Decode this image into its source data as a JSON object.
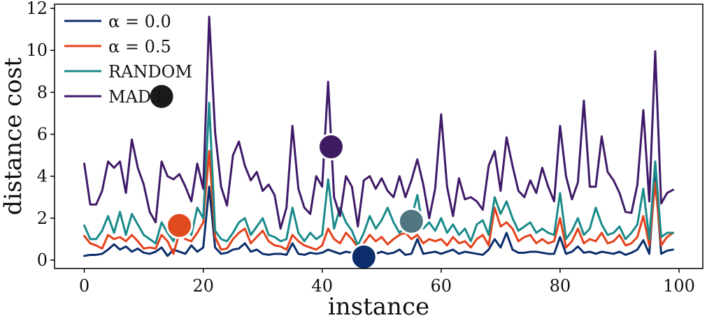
{
  "chart_data": {
    "type": "line",
    "title": "",
    "xlabel": "instance",
    "ylabel": "distance cost",
    "xlim": [
      -5,
      104
    ],
    "ylim": [
      -0.4,
      12.2
    ],
    "xticks": [
      0,
      20,
      40,
      60,
      80,
      100
    ],
    "yticks": [
      0,
      2,
      4,
      6,
      8,
      10,
      12
    ],
    "legend": {
      "placement": "top-left",
      "entries": [
        {
          "name": "α = 0.0",
          "color": "#0b2d6b"
        },
        {
          "name": "α = 0.5",
          "color": "#e5411b"
        },
        {
          "name": "RANDOM",
          "color": "#1a8a8a"
        },
        {
          "name": "MAD3",
          "color": "#3f1a68"
        }
      ]
    },
    "markers": [
      {
        "series": "α = 0.0",
        "color": "#0b2d6b",
        "x": 47,
        "y": 0.15
      },
      {
        "series": "α = 0.5",
        "color": "#e04a1e",
        "x": 16,
        "y": 1.65
      },
      {
        "series": "RANDOM",
        "color": "#4f7681",
        "x": 55,
        "y": 1.85
      },
      {
        "series": "MAD3",
        "color": "#3e1b60",
        "x": 41.5,
        "y": 5.4
      },
      {
        "series": "",
        "color": "#1a1a1a",
        "x": 13,
        "y": 7.8
      }
    ],
    "x": [
      0,
      1,
      2,
      3,
      4,
      5,
      6,
      7,
      8,
      9,
      10,
      11,
      12,
      13,
      14,
      15,
      16,
      17,
      18,
      19,
      20,
      21,
      22,
      23,
      24,
      25,
      26,
      27,
      28,
      29,
      30,
      31,
      32,
      33,
      34,
      35,
      36,
      37,
      38,
      39,
      40,
      41,
      42,
      43,
      44,
      45,
      46,
      47,
      48,
      49,
      50,
      51,
      52,
      53,
      54,
      55,
      56,
      57,
      58,
      59,
      60,
      61,
      62,
      63,
      64,
      65,
      66,
      67,
      68,
      69,
      70,
      71,
      72,
      73,
      74,
      75,
      76,
      77,
      78,
      79,
      80,
      81,
      82,
      83,
      84,
      85,
      86,
      87,
      88,
      89,
      90,
      91,
      92,
      93,
      94,
      95,
      96,
      97,
      98,
      99
    ],
    "series": [
      {
        "name": "α = 0.0",
        "color": "#0b2d6b",
        "values": [
          0.2,
          0.25,
          0.25,
          0.3,
          0.5,
          0.75,
          0.5,
          0.65,
          0.4,
          0.55,
          0.35,
          0.3,
          0.4,
          0.6,
          0.2,
          0.5,
          0.4,
          0.3,
          0.7,
          0.4,
          0.6,
          3.5,
          0.6,
          0.3,
          0.35,
          0.5,
          0.55,
          0.8,
          0.4,
          0.5,
          0.3,
          0.25,
          0.3,
          0.3,
          0.25,
          0.8,
          0.3,
          0.25,
          0.35,
          0.3,
          0.35,
          0.5,
          0.4,
          0.3,
          0.4,
          0.35,
          0.3,
          0.2,
          0.45,
          0.3,
          0.4,
          0.3,
          0.35,
          0.5,
          0.25,
          0.3,
          1.0,
          0.3,
          0.35,
          0.4,
          0.3,
          0.4,
          0.5,
          0.3,
          0.4,
          0.35,
          0.3,
          0.25,
          0.5,
          1.0,
          0.6,
          1.3,
          0.5,
          0.35,
          0.35,
          0.4,
          0.4,
          0.35,
          0.3,
          0.3,
          1.1,
          0.3,
          0.4,
          0.65,
          0.35,
          0.4,
          0.3,
          0.4,
          0.35,
          0.3,
          0.4,
          0.25,
          0.35,
          0.5,
          0.95,
          0.3,
          4.1,
          0.3,
          0.45,
          0.5
        ]
      },
      {
        "name": "α = 0.5",
        "color": "#e5411b",
        "values": [
          1.15,
          0.8,
          0.7,
          0.55,
          1.2,
          1.0,
          1.1,
          0.9,
          1.2,
          0.9,
          0.55,
          0.6,
          0.55,
          1.2,
          0.9,
          0.3,
          1.3,
          1.0,
          0.9,
          1.3,
          1.8,
          5.2,
          1.1,
          0.5,
          0.55,
          1.0,
          1.3,
          1.5,
          0.8,
          1.1,
          1.4,
          0.9,
          0.7,
          0.65,
          0.5,
          1.2,
          0.9,
          0.7,
          0.6,
          0.5,
          0.7,
          1.5,
          1.0,
          0.8,
          1.3,
          1.0,
          0.6,
          0.8,
          1.2,
          0.9,
          1.1,
          0.75,
          1.0,
          1.2,
          1.3,
          1.0,
          1.2,
          0.8,
          1.0,
          0.9,
          1.0,
          0.7,
          1.1,
          0.8,
          0.9,
          0.6,
          1.0,
          1.2,
          0.7,
          2.5,
          1.6,
          1.8,
          1.5,
          0.9,
          1.1,
          1.2,
          0.8,
          1.0,
          0.8,
          0.9,
          2.0,
          0.6,
          0.9,
          1.5,
          0.8,
          1.0,
          0.9,
          1.3,
          0.8,
          0.9,
          1.2,
          0.7,
          0.8,
          1.1,
          2.1,
          0.7,
          3.7,
          0.7,
          1.1,
          1.3
        ]
      },
      {
        "name": "RANDOM",
        "color": "#1a8a8a",
        "values": [
          1.65,
          1.0,
          1.0,
          1.4,
          2.1,
          1.3,
          2.3,
          1.2,
          2.2,
          1.7,
          1.2,
          1.0,
          0.8,
          1.8,
          1.3,
          0.9,
          1.9,
          1.6,
          1.2,
          2.5,
          2.0,
          7.5,
          1.4,
          1.0,
          0.9,
          1.3,
          1.8,
          2.0,
          1.2,
          1.6,
          2.0,
          1.2,
          1.1,
          0.9,
          1.0,
          2.5,
          1.3,
          0.9,
          1.3,
          1.0,
          1.2,
          3.85,
          1.5,
          2.5,
          1.8,
          1.4,
          0.7,
          1.3,
          2.1,
          1.5,
          1.9,
          2.5,
          1.8,
          1.3,
          1.6,
          2.0,
          3.1,
          1.5,
          1.8,
          1.4,
          2.0,
          1.3,
          1.7,
          1.2,
          1.5,
          0.9,
          1.7,
          1.9,
          1.2,
          3.0,
          2.2,
          2.8,
          2.0,
          1.4,
          1.6,
          1.8,
          1.3,
          1.5,
          1.3,
          1.2,
          3.2,
          1.0,
          1.4,
          2.0,
          1.2,
          1.5,
          2.5,
          1.7,
          1.2,
          1.3,
          1.6,
          1.0,
          1.3,
          1.7,
          3.4,
          1.0,
          4.7,
          1.1,
          1.3,
          1.3
        ]
      },
      {
        "name": "MAD3",
        "color": "#3f1a68",
        "values": [
          4.6,
          2.65,
          2.65,
          3.3,
          4.7,
          4.4,
          4.7,
          3.2,
          5.75,
          4.4,
          3.6,
          2.3,
          1.8,
          4.7,
          4.0,
          3.85,
          4.1,
          3.5,
          2.8,
          4.6,
          3.4,
          11.6,
          6.1,
          3.5,
          2.6,
          5.0,
          5.65,
          4.5,
          3.8,
          4.2,
          3.3,
          3.6,
          3.1,
          1.5,
          2.5,
          6.4,
          3.4,
          2.5,
          2.2,
          4.0,
          3.5,
          8.5,
          3.0,
          2.1,
          4.0,
          3.5,
          1.6,
          3.8,
          4.0,
          3.4,
          3.9,
          3.3,
          3.0,
          4.0,
          3.0,
          3.8,
          4.8,
          3.6,
          2.0,
          3.4,
          6.95,
          3.5,
          2.1,
          3.9,
          2.9,
          3.0,
          2.8,
          2.4,
          4.5,
          5.2,
          3.3,
          5.85,
          4.5,
          3.3,
          3.0,
          3.8,
          3.2,
          4.4,
          3.5,
          2.8,
          6.4,
          4.0,
          2.9,
          3.7,
          7.6,
          3.5,
          3.5,
          5.9,
          4.2,
          3.8,
          3.2,
          2.3,
          2.25,
          3.6,
          7.15,
          2.8,
          9.95,
          2.7,
          3.2,
          3.35
        ]
      }
    ]
  }
}
